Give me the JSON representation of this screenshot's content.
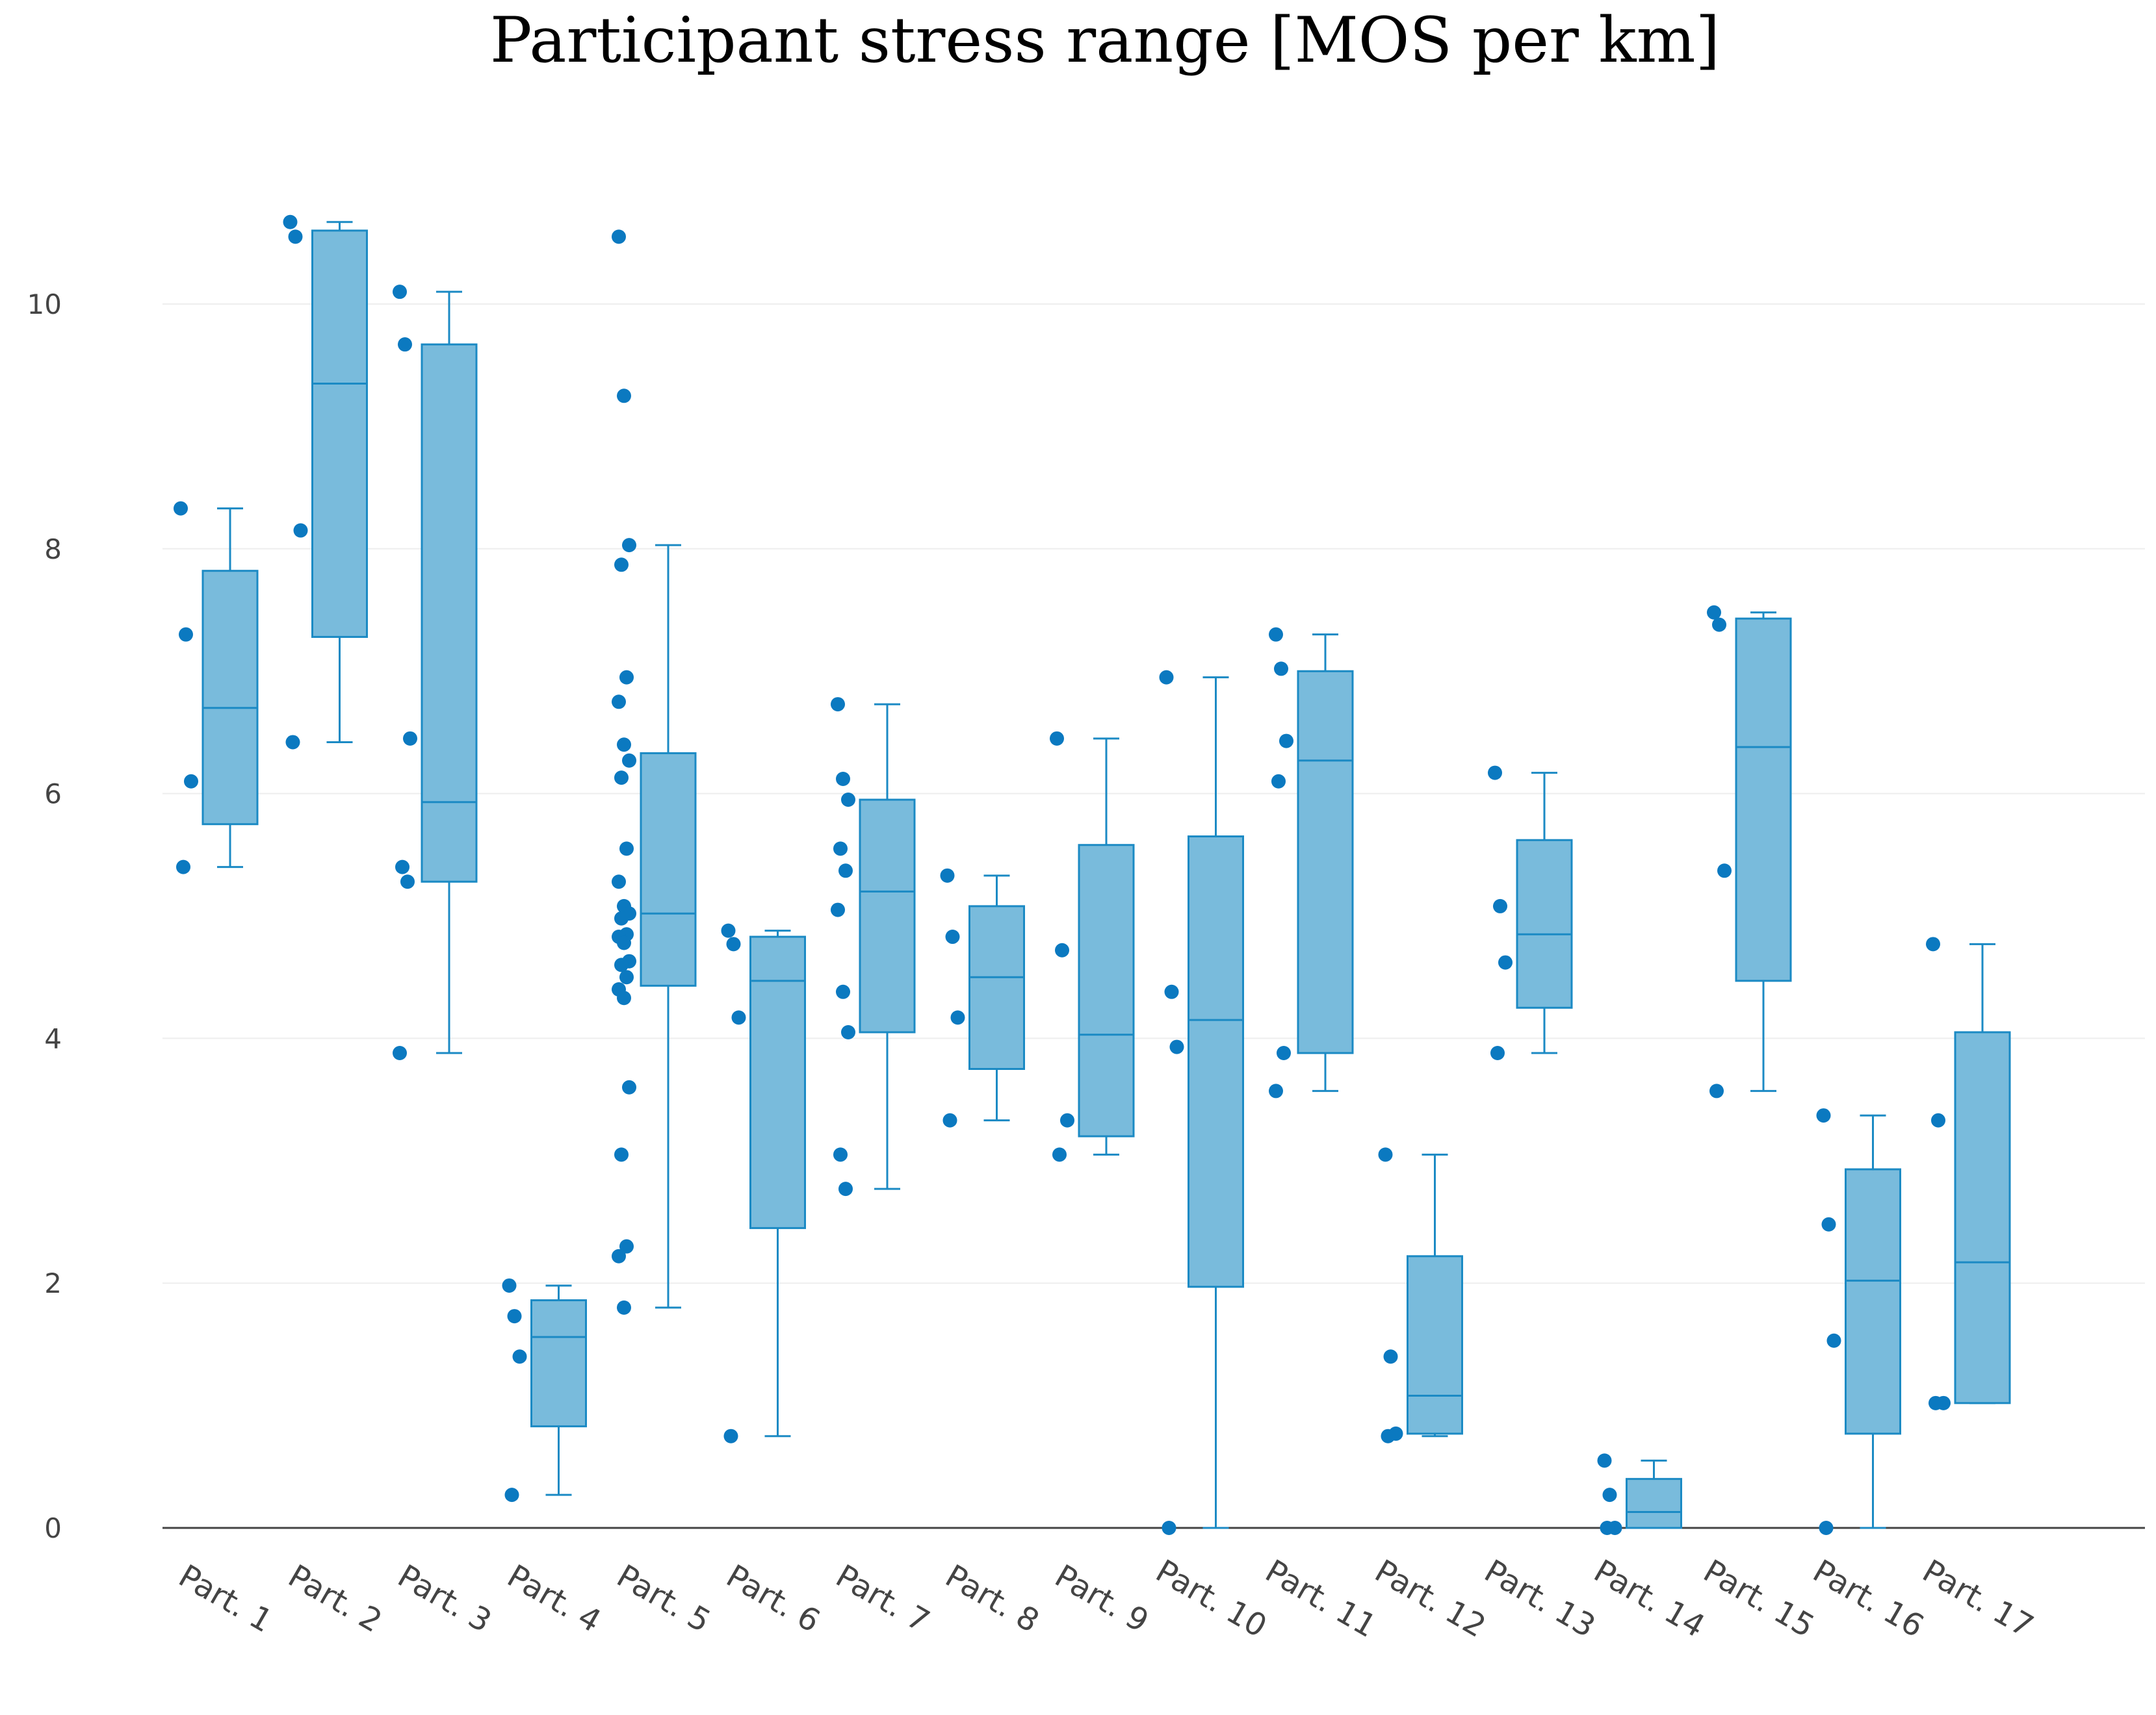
{
  "chart_data": {
    "type": "box",
    "title": "Participant stress range [MOS per km]",
    "xlabel": "",
    "ylabel": "",
    "ylim": [
      0,
      11
    ],
    "yticks": [
      0,
      2,
      4,
      6,
      8,
      10
    ],
    "grid": true,
    "colors": {
      "box_fill": "#79bbdc",
      "box_line": "#1b8ac4",
      "point": "#0b79c0",
      "grid": "#eeeeee",
      "zero_line": "#444444",
      "text": "#444444"
    },
    "categories": [
      "Part. 1",
      "Part. 2",
      "Part. 3",
      "Part. 4",
      "Part. 5",
      "Part. 6",
      "Part. 7",
      "Part. 8",
      "Part. 9",
      "Part. 10",
      "Part. 11",
      "Part. 12",
      "Part. 13",
      "Part. 14",
      "Part. 15",
      "Part. 16",
      "Part. 17"
    ],
    "series": [
      {
        "name": "Part. 1",
        "min": 5.4,
        "q1": 5.75,
        "median": 6.7,
        "q3": 7.82,
        "max": 8.33,
        "points": [
          8.33,
          7.3,
          6.1,
          5.4
        ]
      },
      {
        "name": "Part. 2",
        "min": 6.42,
        "q1": 7.28,
        "median": 9.35,
        "q3": 10.6,
        "max": 10.67,
        "points": [
          10.67,
          10.55,
          8.15,
          6.42
        ]
      },
      {
        "name": "Part. 3",
        "min": 3.88,
        "q1": 5.28,
        "median": 5.93,
        "q3": 9.67,
        "max": 10.1,
        "points": [
          10.1,
          9.67,
          6.45,
          5.4,
          5.28,
          3.88
        ]
      },
      {
        "name": "Part. 4",
        "min": 0.27,
        "q1": 0.83,
        "median": 1.56,
        "q3": 1.86,
        "max": 1.98,
        "points": [
          1.98,
          1.73,
          1.4,
          0.27
        ]
      },
      {
        "name": "Part. 5",
        "min": 1.8,
        "q1": 4.43,
        "median": 5.02,
        "q3": 6.33,
        "max": 8.03,
        "points": [
          10.55,
          9.25,
          8.03,
          7.87,
          6.95,
          6.75,
          6.4,
          6.27,
          6.13,
          5.55,
          5.28,
          5.08,
          5.02,
          4.98,
          4.85,
          4.83,
          4.78,
          4.63,
          4.6,
          4.5,
          4.4,
          4.33,
          3.6,
          3.05,
          2.3,
          2.22,
          1.8
        ]
      },
      {
        "name": "Part. 6",
        "min": 0.75,
        "q1": 2.45,
        "median": 4.47,
        "q3": 4.83,
        "max": 4.88,
        "points": [
          4.88,
          4.77,
          4.17,
          0.75
        ]
      },
      {
        "name": "Part. 7",
        "min": 2.77,
        "q1": 4.05,
        "median": 5.2,
        "q3": 5.95,
        "max": 6.73,
        "points": [
          6.73,
          6.12,
          5.95,
          5.55,
          5.37,
          5.05,
          4.38,
          4.05,
          3.05,
          2.77
        ]
      },
      {
        "name": "Part. 8",
        "min": 3.33,
        "q1": 3.75,
        "median": 4.5,
        "q3": 5.08,
        "max": 5.33,
        "points": [
          5.33,
          4.83,
          4.17,
          3.33
        ]
      },
      {
        "name": "Part. 9",
        "min": 3.05,
        "q1": 3.2,
        "median": 4.03,
        "q3": 5.58,
        "max": 6.45,
        "points": [
          6.45,
          4.72,
          3.33,
          3.05
        ]
      },
      {
        "name": "Part. 10",
        "min": 0.0,
        "q1": 1.97,
        "median": 4.15,
        "q3": 5.65,
        "max": 6.95,
        "points": [
          6.95,
          4.38,
          3.93,
          0.0
        ]
      },
      {
        "name": "Part. 11",
        "min": 3.57,
        "q1": 3.88,
        "median": 6.27,
        "q3": 7.0,
        "max": 7.3,
        "points": [
          7.3,
          7.02,
          6.43,
          6.1,
          3.88,
          3.57
        ]
      },
      {
        "name": "Part. 12",
        "min": 0.75,
        "q1": 0.77,
        "median": 1.08,
        "q3": 2.22,
        "max": 3.05,
        "points": [
          3.05,
          1.4,
          0.77,
          0.75
        ]
      },
      {
        "name": "Part. 13",
        "min": 3.88,
        "q1": 4.25,
        "median": 4.85,
        "q3": 5.62,
        "max": 6.17,
        "points": [
          6.17,
          5.08,
          4.62,
          3.88
        ]
      },
      {
        "name": "Part. 14",
        "min": 0.0,
        "q1": 0.0,
        "median": 0.13,
        "q3": 0.4,
        "max": 0.55,
        "points": [
          0.55,
          0.27,
          0.0,
          0.0
        ]
      },
      {
        "name": "Part. 15",
        "min": 3.57,
        "q1": 4.47,
        "median": 6.38,
        "q3": 7.43,
        "max": 7.48,
        "points": [
          7.48,
          7.38,
          5.37,
          3.57
        ]
      },
      {
        "name": "Part. 16",
        "min": 0.0,
        "q1": 0.77,
        "median": 2.02,
        "q3": 2.93,
        "max": 3.37,
        "points": [
          3.37,
          2.48,
          1.53,
          0.0
        ]
      },
      {
        "name": "Part. 17",
        "min": 1.02,
        "q1": 1.02,
        "median": 2.17,
        "q3": 4.05,
        "max": 4.77,
        "points": [
          4.77,
          3.33,
          1.02,
          1.02
        ]
      }
    ]
  }
}
